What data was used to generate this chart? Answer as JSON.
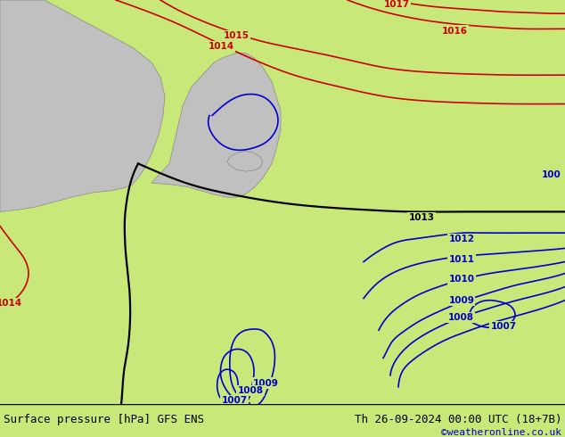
{
  "title_left": "Surface pressure [hPa] GFS ENS",
  "title_right": "Th 26-09-2024 00:00 UTC (18+7B)",
  "copyright": "©weatheronline.co.uk",
  "bg_color": "#c8e87a",
  "land_color": "#c8e87a",
  "sea_color": "#d8d8d8",
  "contour_colors": {
    "red": "#cc0000",
    "black": "#000000",
    "blue": "#0000cc"
  },
  "bottom_bar_color": "#ffffff",
  "title_color": "#000000",
  "copyright_color": "#0000cc",
  "font_size_title": 9,
  "font_size_labels": 7.5
}
